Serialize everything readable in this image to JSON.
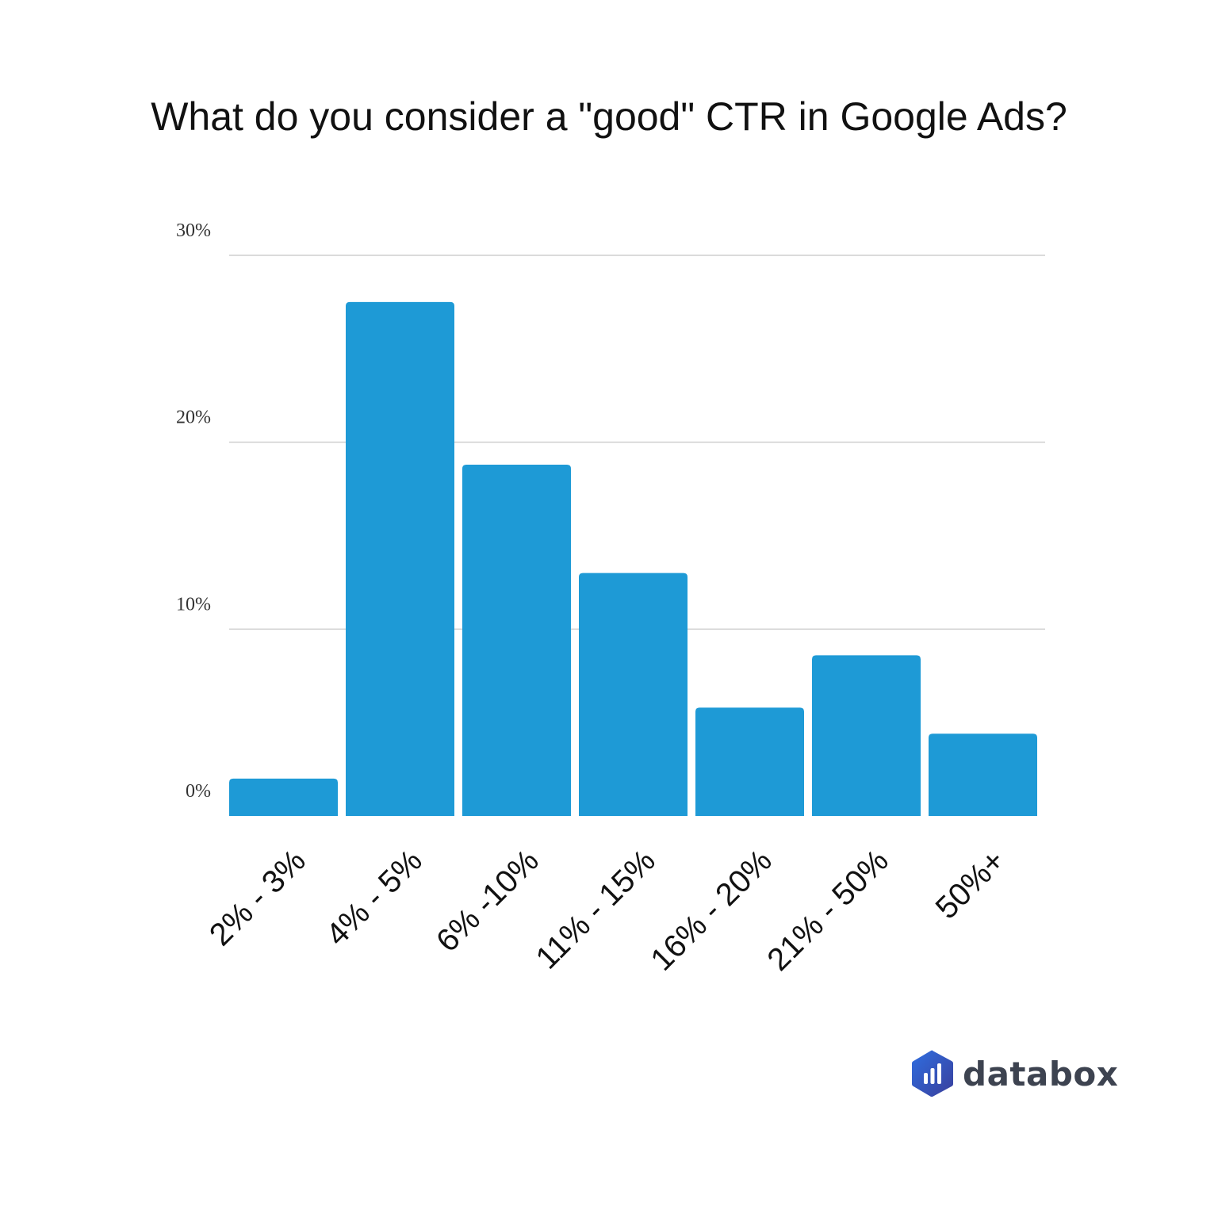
{
  "chart_data": {
    "type": "bar",
    "title": "What do you consider a \"good\" CTR in Google Ads?",
    "xlabel": "",
    "ylabel": "",
    "categories": [
      "2% - 3%",
      "4% - 5%",
      "6% -10%",
      "11% - 15%",
      "16% - 20%",
      "21% - 50%",
      "50%+"
    ],
    "values": [
      2.0,
      27.5,
      18.8,
      13.0,
      5.8,
      8.6,
      4.4
    ],
    "ylim": [
      0,
      30
    ],
    "yticks": [
      0,
      10,
      20,
      30
    ],
    "ytick_labels": [
      "0%",
      "10%",
      "20%",
      "30%"
    ],
    "grid": true,
    "bar_color": "#1e9ad6"
  },
  "brand": {
    "name": "databox",
    "logo_icon": "databox-logo-icon",
    "logo_colors": [
      "#2f6ee0",
      "#3a3f9c"
    ]
  }
}
